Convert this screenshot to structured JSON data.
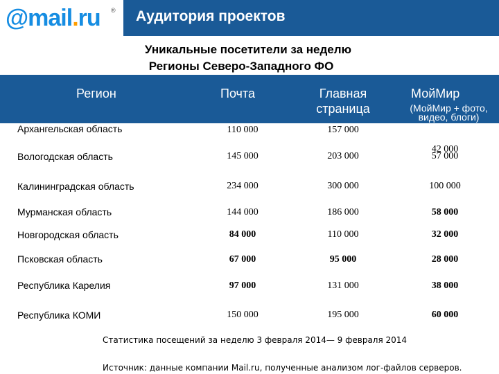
{
  "header": {
    "logo_at": "@",
    "logo_mail": "mail",
    "logo_dot": ".",
    "logo_ru": "ru",
    "logo_reg": "®",
    "title": "Аудитория проектов"
  },
  "subtitle": {
    "line1": "Уникальные посетители за неделю",
    "line2": "Регионы Северо-Западного ФО"
  },
  "table": {
    "columns": {
      "region": "Регион",
      "pochta": "Почта",
      "main_page": "Главная страница",
      "moimir": "МойМир",
      "moimir_sub": "(МойМир + фото, видео, блоги)"
    },
    "rows": [
      {
        "region": "Архангельская область",
        "pochta": "110 000",
        "main": "157 000",
        "moimir": "42 000"
      },
      {
        "region": "Вологодская область",
        "pochta": "145 000",
        "main": "203 000",
        "moimir": "57 000"
      },
      {
        "region": "Калининградская область",
        "pochta": "234 000",
        "main": "300 000",
        "moimir": "100 000"
      },
      {
        "region": "Мурманская область",
        "pochta": "144 000",
        "main": "186 000",
        "moimir": "58 000"
      },
      {
        "region": "Новгородская область",
        "pochta": "84 000",
        "main": "110 000",
        "moimir": "32 000"
      },
      {
        "region": "Псковская область",
        "pochta": "67 000",
        "main": "95 000",
        "moimir": "28 000"
      },
      {
        "region": "Республика Карелия",
        "pochta": "97 000",
        "main": "131 000",
        "moimir": "38 000"
      },
      {
        "region": "Республика КОМИ",
        "pochta": "150 000",
        "main": "195 000",
        "moimir": "60 000"
      }
    ]
  },
  "footer": {
    "stats": "Статистика посещений за неделю 3 февраля 2014— 9 февраля 2014",
    "source": "Источник: данные компании Mail.ru, полученные анализом лог-файлов серверов."
  },
  "colors": {
    "brand_blue": "#1a5a97",
    "logo_blue": "#168de2",
    "logo_orange": "#ff9e00"
  }
}
